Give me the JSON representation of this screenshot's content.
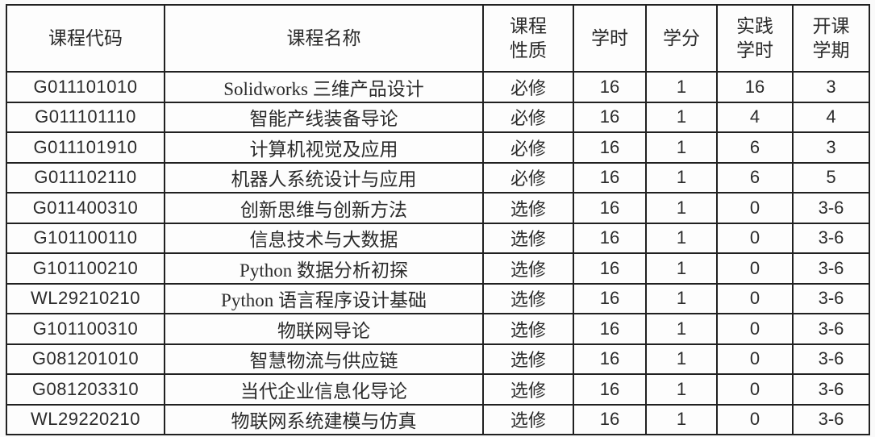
{
  "table": {
    "columns": [
      {
        "key": "code",
        "label": "课程代码"
      },
      {
        "key": "name",
        "label": "课程名称"
      },
      {
        "key": "nature",
        "label": "课程\n性质"
      },
      {
        "key": "hours",
        "label": "学时"
      },
      {
        "key": "credits",
        "label": "学分"
      },
      {
        "key": "practice_hours",
        "label": "实践\n学时"
      },
      {
        "key": "semester",
        "label": "开课\n学期"
      }
    ],
    "rows": [
      {
        "code": "G011101010",
        "name": "Solidworks 三维产品设计",
        "nature": "必修",
        "hours": "16",
        "credits": "1",
        "practice_hours": "16",
        "semester": "3"
      },
      {
        "code": "G011101110",
        "name": "智能产线装备导论",
        "nature": "必修",
        "hours": "16",
        "credits": "1",
        "practice_hours": "4",
        "semester": "4"
      },
      {
        "code": "G011101910",
        "name": "计算机视觉及应用",
        "nature": "必修",
        "hours": "16",
        "credits": "1",
        "practice_hours": "6",
        "semester": "3"
      },
      {
        "code": "G011102110",
        "name": "机器人系统设计与应用",
        "nature": "必修",
        "hours": "16",
        "credits": "1",
        "practice_hours": "6",
        "semester": "5"
      },
      {
        "code": "G011400310",
        "name": "创新思维与创新方法",
        "nature": "选修",
        "hours": "16",
        "credits": "1",
        "practice_hours": "0",
        "semester": "3-6"
      },
      {
        "code": "G101100110",
        "name": "信息技术与大数据",
        "nature": "选修",
        "hours": "16",
        "credits": "1",
        "practice_hours": "0",
        "semester": "3-6"
      },
      {
        "code": "G101100210",
        "name": "Python 数据分析初探",
        "nature": "选修",
        "hours": "16",
        "credits": "1",
        "practice_hours": "0",
        "semester": "3-6"
      },
      {
        "code": "WL29210210",
        "name": "Python 语言程序设计基础",
        "nature": "选修",
        "hours": "16",
        "credits": "1",
        "practice_hours": "0",
        "semester": "3-6"
      },
      {
        "code": "G101100310",
        "name": "物联网导论",
        "nature": "选修",
        "hours": "16",
        "credits": "1",
        "practice_hours": "0",
        "semester": "3-6"
      },
      {
        "code": "G081201010",
        "name": "智慧物流与供应链",
        "nature": "选修",
        "hours": "16",
        "credits": "1",
        "practice_hours": "0",
        "semester": "3-6"
      },
      {
        "code": "G081203310",
        "name": "当代企业信息化导论",
        "nature": "选修",
        "hours": "16",
        "credits": "1",
        "practice_hours": "0",
        "semester": "3-6"
      },
      {
        "code": "WL29220210",
        "name": "物联网系统建模与仿真",
        "nature": "选修",
        "hours": "16",
        "credits": "1",
        "practice_hours": "0",
        "semester": "3-6"
      }
    ]
  },
  "colors": {
    "border": "#212121",
    "text": "#2b2b2b",
    "background": "#fafafa",
    "cell_background": "#fdfdfd"
  }
}
